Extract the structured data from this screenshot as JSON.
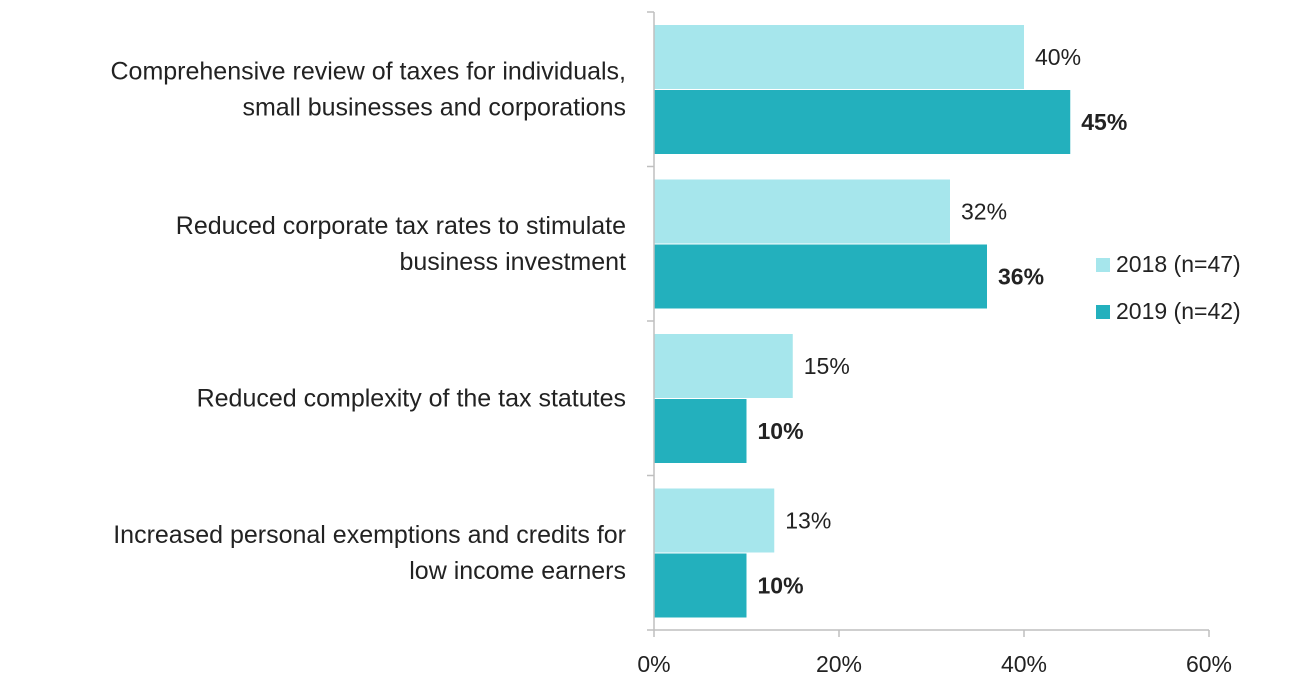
{
  "chart_data": {
    "type": "bar",
    "orientation": "horizontal",
    "categories": [
      [
        "Comprehensive review of taxes for individuals,",
        "small businesses and corporations"
      ],
      [
        "Reduced corporate tax rates to stimulate",
        "business investment"
      ],
      [
        "Reduced complexity of the tax statutes"
      ],
      [
        "Increased personal exemptions and credits for",
        "low income earners"
      ]
    ],
    "series": [
      {
        "name": "2018 (n=47)",
        "values": [
          40,
          32,
          15,
          13
        ],
        "color": "#a6e6ec",
        "labels": [
          "40%",
          "32%",
          "15%",
          "13%"
        ],
        "label_weight": "normal"
      },
      {
        "name": "2019 (n=42)",
        "values": [
          45,
          36,
          10,
          10
        ],
        "color": "#23b0bd",
        "labels": [
          "45%",
          "36%",
          "10%",
          "10%"
        ],
        "label_weight": "bold"
      }
    ],
    "xlim": [
      0,
      60
    ],
    "xticks": [
      0,
      20,
      40,
      60
    ],
    "xtick_labels": [
      "0%",
      "20%",
      "40%",
      "60%"
    ],
    "grid": false,
    "legend_position": "right"
  }
}
